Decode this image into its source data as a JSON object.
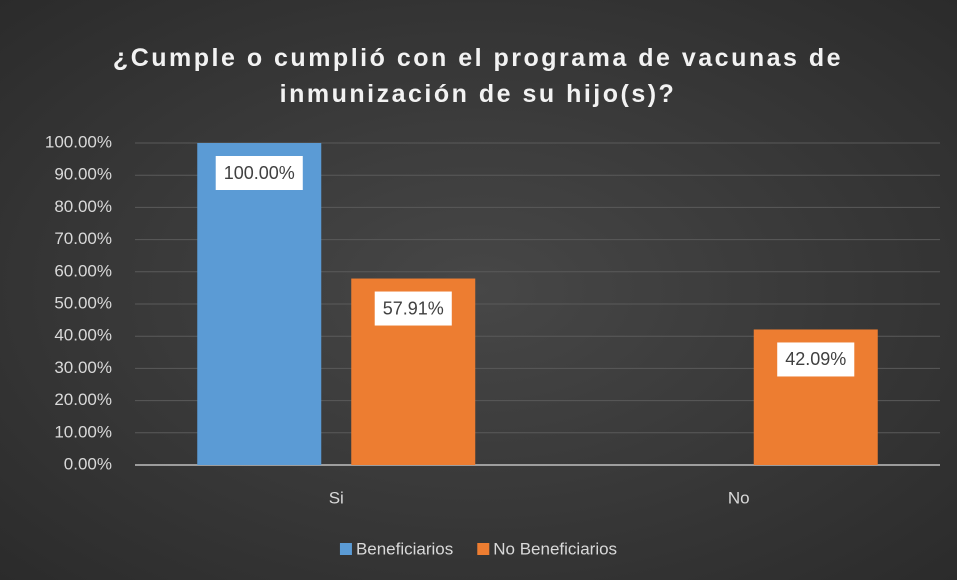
{
  "chart_data": {
    "type": "bar",
    "title": "¿Cumple o cumplió con el programa de vacunas de inmunización de su hijo(s)?",
    "categories": [
      "Si",
      "No"
    ],
    "series": [
      {
        "name": "Beneficiarios",
        "color": "#5b9bd5",
        "values": [
          100,
          null
        ],
        "value_labels": [
          "100.00%",
          null
        ]
      },
      {
        "name": "No Beneficiarios",
        "color": "#ed7d31",
        "values": [
          57.91,
          42.09
        ],
        "value_labels": [
          "57.91%",
          "42.09%"
        ]
      }
    ],
    "ylim": [
      0,
      100
    ],
    "yticks": [
      {
        "value": 0,
        "label": "0.00%"
      },
      {
        "value": 10,
        "label": "10.00%"
      },
      {
        "value": 20,
        "label": "20.00%"
      },
      {
        "value": 30,
        "label": "30.00%"
      },
      {
        "value": 40,
        "label": "40.00%"
      },
      {
        "value": 50,
        "label": "50.00%"
      },
      {
        "value": 60,
        "label": "60.00%"
      },
      {
        "value": 70,
        "label": "70.00%"
      },
      {
        "value": 80,
        "label": "80.00%"
      },
      {
        "value": 90,
        "label": "90.00%"
      },
      {
        "value": 100,
        "label": "100.00%"
      }
    ],
    "grid": true,
    "legend": "bottom"
  }
}
